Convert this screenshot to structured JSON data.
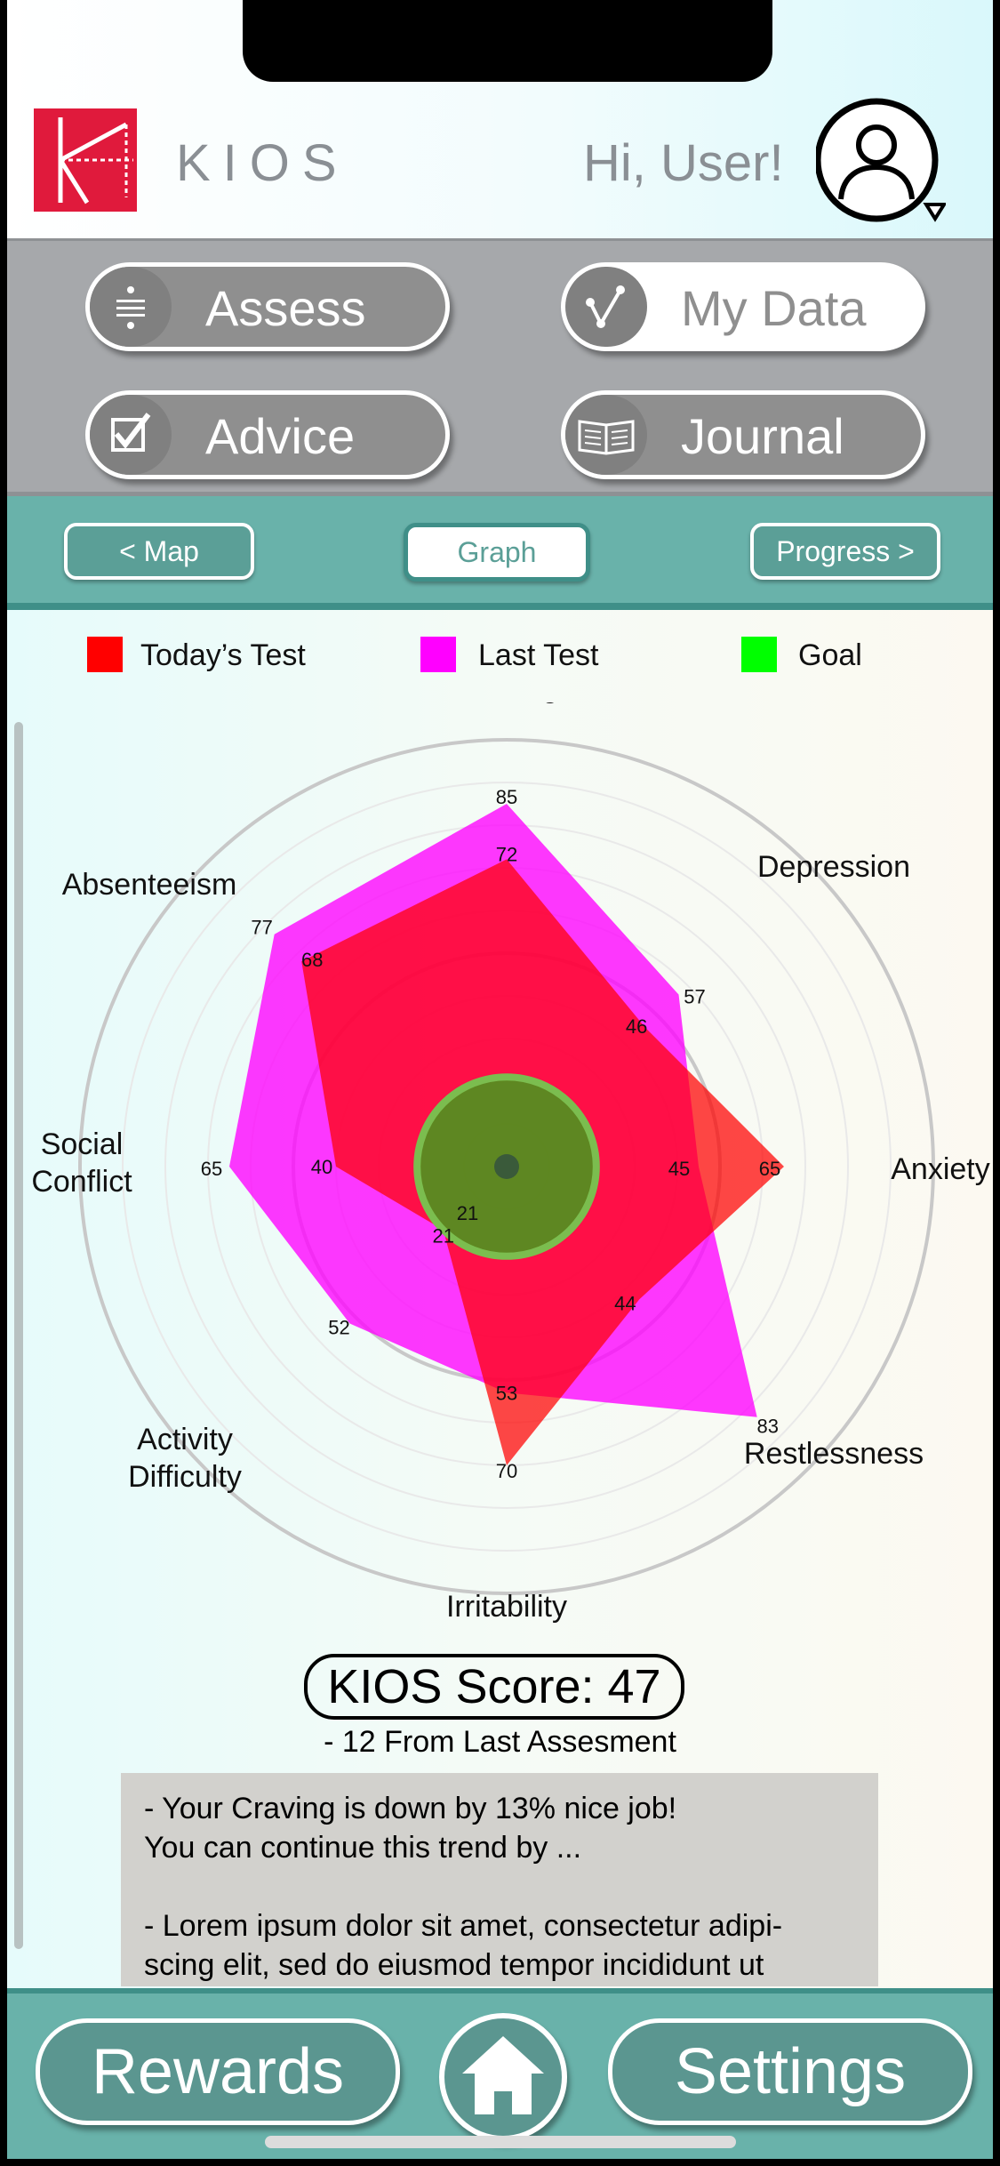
{
  "header": {
    "brand": "KIOS",
    "greeting": "Hi, User!"
  },
  "menu": {
    "assess": "Assess",
    "my_data": "My Data",
    "advice": "Advice",
    "journal": "Journal"
  },
  "tabs": {
    "map": "< Map",
    "graph": "Graph",
    "progress": "Progress >"
  },
  "legend": {
    "today": "Today’s Test",
    "last": "Last Test",
    "goal": "Goal"
  },
  "colors": {
    "today": "#ff0000",
    "last": "#ff00ff",
    "goal": "#00ff00",
    "accent": "#69b2aa"
  },
  "chart_data": {
    "type": "radar",
    "axes": [
      "Craving",
      "Depression",
      "Anxiety",
      "Restlessness",
      "Irritability",
      "Activity Difficulty",
      "Social Conflict",
      "Absenteeism"
    ],
    "axis_labels": [
      "Craving",
      "Depression",
      "Anxiety",
      "Restlessness",
      "Irritability",
      "Activity\nDifficulty",
      "Social\nConflict",
      "Absenteeism"
    ],
    "range": [
      0,
      100
    ],
    "series": [
      {
        "name": "Last Test",
        "values": [
          85,
          57,
          45,
          83,
          53,
          52,
          65,
          77
        ]
      },
      {
        "name": "Today’s Test",
        "values": [
          72,
          46,
          65,
          44,
          70,
          21,
          40,
          68
        ]
      },
      {
        "name": "Goal",
        "values": [
          21,
          21,
          21,
          21,
          21,
          21,
          21,
          21
        ]
      }
    ]
  },
  "score": {
    "label": "KIOS Score: 47",
    "delta": "- 12 From Last Assesment"
  },
  "advice": {
    "line1": "- Your Craving is down by 13% nice job!",
    "line2": "You can continue this trend by ...",
    "line3": "- Lorem ipsum dolor sit amet, consectetur adipi-",
    "line4": "scing elit, sed do eiusmod tempor incididunt ut"
  },
  "footer": {
    "rewards": "Rewards",
    "settings": "Settings"
  }
}
